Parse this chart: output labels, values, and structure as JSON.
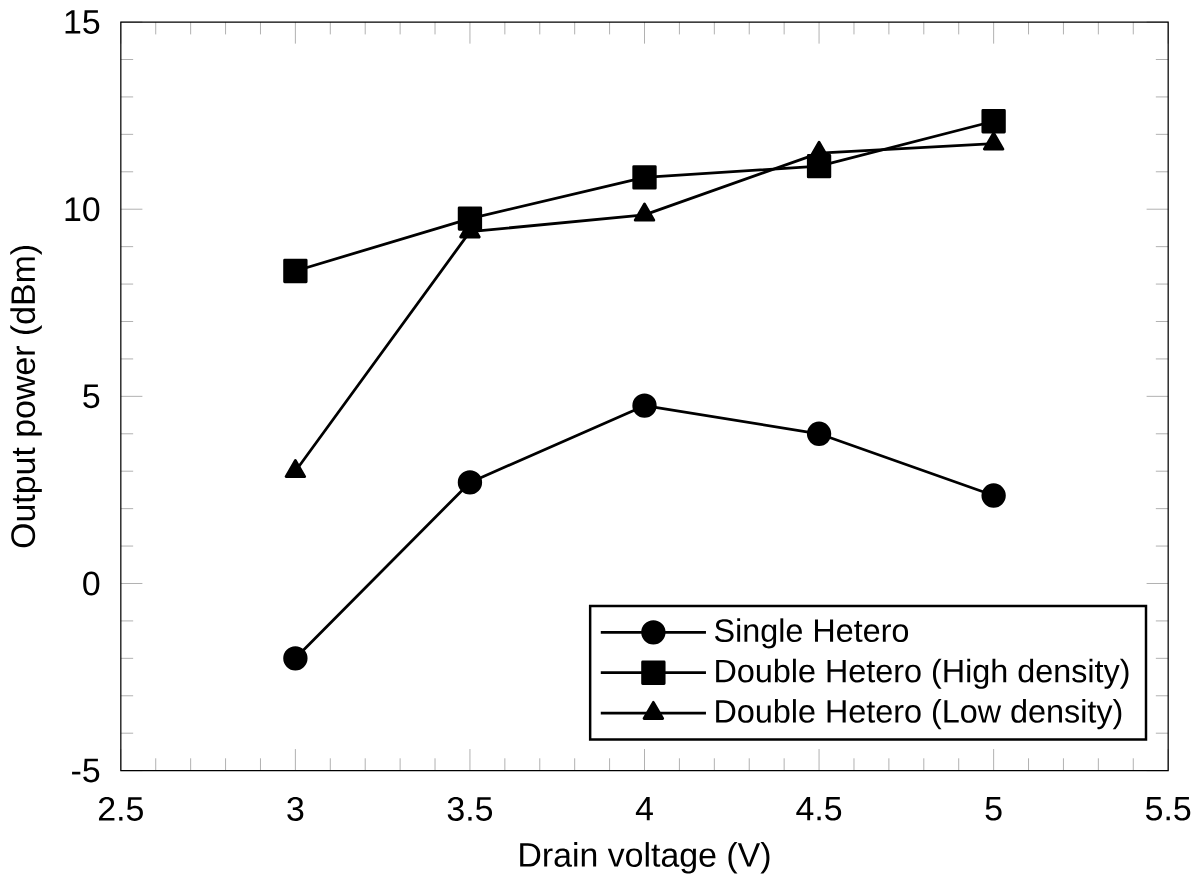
{
  "chart_data": {
    "type": "line",
    "xlabel": "Drain voltage (V)",
    "ylabel": "Output power (dBm)",
    "x": [
      3,
      3.5,
      4,
      4.5,
      5
    ],
    "xlim": [
      2.5,
      5.5
    ],
    "xticks": [
      2.5,
      3,
      3.5,
      4,
      4.5,
      5,
      5.5
    ],
    "ylim": [
      -5,
      15
    ],
    "yticks": [
      -5,
      0,
      5,
      10,
      15
    ],
    "grid": false,
    "legend": "bottom right",
    "line_style": "solid",
    "series": [
      {
        "name": "Single Hetero",
        "color": "#000000",
        "marker": "circle",
        "values": [
          -2.0,
          2.7,
          4.75,
          4.0,
          2.35
        ]
      },
      {
        "name": "Double Hetero (High density)",
        "color": "#000000",
        "marker": "square",
        "values": [
          8.35,
          9.75,
          10.85,
          11.15,
          12.35
        ]
      },
      {
        "name": "Double Hetero (Low density)",
        "color": "#000000",
        "marker": "triangle",
        "values": [
          3.0,
          9.4,
          9.85,
          11.5,
          11.75
        ]
      }
    ]
  }
}
